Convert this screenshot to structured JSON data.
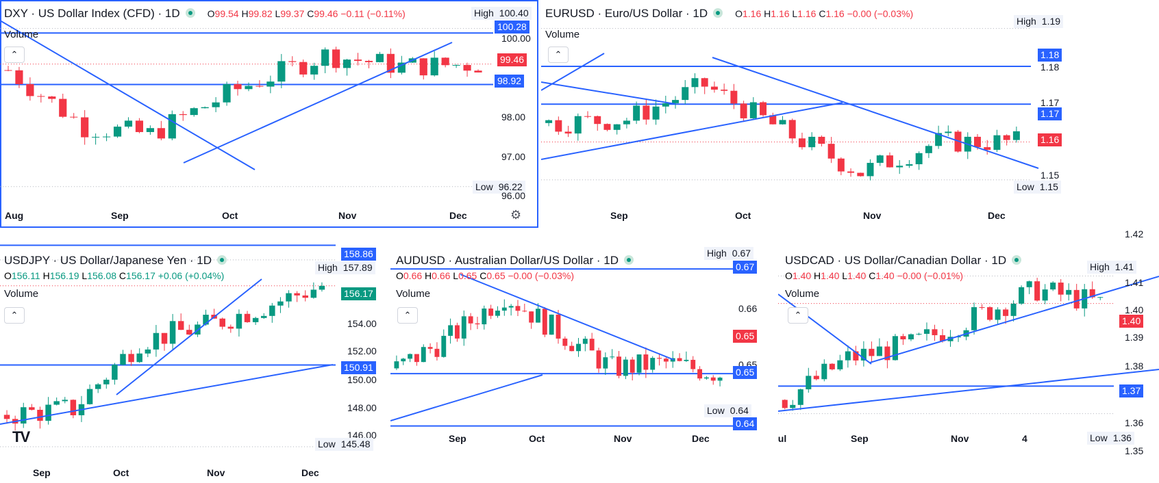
{
  "colors": {
    "up": "#089981",
    "down": "#f23645",
    "line": "#2962ff"
  },
  "panels": [
    {
      "id": "dxy",
      "header": {
        "title": "DXY · US Dollar Index (CFD) · 1D",
        "o": "99.54",
        "h": "99.82",
        "l": "99.37",
        "c": "99.46",
        "chg": "−0.11 (−0.11%)",
        "dir": "down"
      },
      "volume_label": "Volume",
      "high": {
        "label": "High",
        "value": "100.40"
      },
      "low": {
        "label": "Low",
        "value": "96.22"
      },
      "price_tags": [
        {
          "value": "100.28",
          "kind": "blue"
        },
        {
          "value": "99.46",
          "kind": "red"
        },
        {
          "value": "98.92",
          "kind": "blue"
        }
      ],
      "y_ticks": [
        "100.00",
        "98.00",
        "97.00",
        "96.00"
      ],
      "x_ticks": [
        "Aug",
        "Sep",
        "Oct",
        "Nov",
        "Dec"
      ],
      "settings_icon": "gear-icon"
    },
    {
      "id": "eurusd",
      "header": {
        "title": "EURUSD · Euro/US Dollar · 1D",
        "o": "1.16",
        "h": "1.16",
        "l": "1.16",
        "c": "1.16",
        "chg": "−0.00 (−0.03%)",
        "dir": "down"
      },
      "volume_label": "Volume",
      "high": {
        "label": "High",
        "value": "1.19"
      },
      "low": {
        "label": "Low",
        "value": "1.15"
      },
      "price_tags": [
        {
          "value": "1.18",
          "kind": "blue"
        },
        {
          "value": "1.17",
          "kind": "blue"
        },
        {
          "value": "1.16",
          "kind": "red"
        }
      ],
      "y_ticks": [
        "1.18",
        "1.17",
        "1.15"
      ],
      "x_ticks": [
        "Sep",
        "Oct",
        "Nov",
        "Dec"
      ]
    },
    {
      "id": "usdjpy",
      "header": {
        "title": "USDJPY · US Dollar/Japanese Yen · 1D",
        "o": "156.11",
        "h": "156.19",
        "l": "156.08",
        "c": "156.17",
        "chg": "+0.06 (+0.04%)",
        "dir": "up"
      },
      "volume_label": "Volume",
      "high": {
        "label": "High",
        "value": "157.89"
      },
      "low": {
        "label": "Low",
        "value": "145.48"
      },
      "price_tags": [
        {
          "value": "158.86",
          "kind": "blue"
        },
        {
          "value": "156.17",
          "kind": "green"
        },
        {
          "value": "150.91",
          "kind": "blue"
        }
      ],
      "y_ticks": [
        "154.00",
        "152.00",
        "150.00",
        "148.00",
        "146.00"
      ],
      "x_ticks": [
        "Sep",
        "Oct",
        "Nov",
        "Dec"
      ],
      "logo": "TV"
    },
    {
      "id": "audusd",
      "header": {
        "title": "AUDUSD · Australian Dollar/US Dollar · 1D",
        "o": "0.66",
        "h": "0.66",
        "l": "0.65",
        "c": "0.65",
        "chg": "−0.00 (−0.03%)",
        "dir": "down"
      },
      "volume_label": "Volume",
      "high": {
        "label": "High",
        "value": "0.67"
      },
      "low": {
        "label": "Low",
        "value": "0.64"
      },
      "price_tags": [
        {
          "value": "0.67",
          "kind": "blue"
        },
        {
          "value": "0.65",
          "kind": "red"
        },
        {
          "value": "0.65",
          "kind": "blue"
        },
        {
          "value": "0.64",
          "kind": "blue"
        }
      ],
      "y_ticks": [
        "0.66",
        "0.65"
      ],
      "x_ticks": [
        "Sep",
        "Oct",
        "Nov",
        "Dec"
      ]
    },
    {
      "id": "usdcad",
      "header": {
        "title": "USDCAD · US Dollar/Canadian Dollar · 1D",
        "o": "1.40",
        "h": "1.40",
        "l": "1.40",
        "c": "1.40",
        "chg": "−0.00 (−0.01%)",
        "dir": "down"
      },
      "volume_label": "Volume",
      "high": {
        "label": "High",
        "value": "1.41"
      },
      "low": {
        "label": "Low",
        "value": "1.36"
      },
      "price_tags": [
        {
          "value": "1.40",
          "kind": "red"
        },
        {
          "value": "1.37",
          "kind": "blue"
        }
      ],
      "y_ticks": [
        "1.42",
        "1.41",
        "1.40",
        "1.39",
        "1.38",
        "1.36",
        "1.35"
      ],
      "x_ticks": [
        "Jul",
        "Sep",
        "Nov",
        "4"
      ]
    }
  ],
  "chart_data": [
    {
      "type": "candlestick",
      "symbol": "DXY",
      "timeframe": "1D",
      "ylim": [
        95.8,
        100.9
      ],
      "last": {
        "open": 99.54,
        "high": 99.82,
        "low": 99.37,
        "close": 99.46
      },
      "close_path": [
        {
          "x": "Aug",
          "y": 99.3
        },
        {
          "x": "Sep",
          "y": 97.8
        },
        {
          "x": "Oct",
          "y": 97.6
        },
        {
          "x": "Oct mid",
          "y": 98.8
        },
        {
          "x": "Nov",
          "y": 99.7
        },
        {
          "x": "Nov mid",
          "y": 99.4
        },
        {
          "x": "Nov end",
          "y": 99.46
        }
      ],
      "levels": [
        100.28,
        98.92
      ],
      "period_high": 100.4,
      "period_low": 96.22
    },
    {
      "type": "candlestick",
      "symbol": "EURUSD",
      "timeframe": "1D",
      "ylim": [
        1.144,
        1.195
      ],
      "last": {
        "open": 1.16,
        "high": 1.16,
        "low": 1.16,
        "close": 1.16
      },
      "close_path": [
        {
          "x": "Aug",
          "y": 1.165
        },
        {
          "x": "Sep",
          "y": 1.166
        },
        {
          "x": "Sep mid",
          "y": 1.175
        },
        {
          "x": "Oct",
          "y": 1.163
        },
        {
          "x": "Nov",
          "y": 1.152
        },
        {
          "x": "Nov mid",
          "y": 1.16
        },
        {
          "x": "Dec",
          "y": 1.16
        }
      ],
      "levels": [
        1.18,
        1.17
      ],
      "period_high": 1.19,
      "period_low": 1.15
    },
    {
      "type": "candlestick",
      "symbol": "USDJPY",
      "timeframe": "1D",
      "ylim": [
        145.3,
        159.2
      ],
      "last": {
        "open": 156.11,
        "high": 156.19,
        "low": 156.08,
        "close": 156.17
      },
      "close_path": [
        {
          "x": "Sep",
          "y": 147.6
        },
        {
          "x": "Oct",
          "y": 148.0
        },
        {
          "x": "Oct mid",
          "y": 152.5
        },
        {
          "x": "Nov",
          "y": 153.5
        },
        {
          "x": "Nov mid",
          "y": 155.0
        },
        {
          "x": "Nov end",
          "y": 156.17
        }
      ],
      "levels": [
        158.86,
        150.91
      ],
      "period_high": 157.89,
      "period_low": 145.48
    },
    {
      "type": "candlestick",
      "symbol": "AUDUSD",
      "timeframe": "1D",
      "ylim": [
        0.6355,
        0.6755
      ],
      "last": {
        "open": 0.66,
        "high": 0.66,
        "low": 0.65,
        "close": 0.65
      },
      "close_path": [
        {
          "x": "Aug",
          "y": 0.651
        },
        {
          "x": "Sep",
          "y": 0.657
        },
        {
          "x": "Sep mid",
          "y": 0.665
        },
        {
          "x": "Oct",
          "y": 0.658
        },
        {
          "x": "Oct mid",
          "y": 0.651
        },
        {
          "x": "Nov",
          "y": 0.652
        },
        {
          "x": "Nov end",
          "y": 0.65
        }
      ],
      "levels": [
        0.67,
        0.65,
        0.64
      ],
      "period_high": 0.67,
      "period_low": 0.64
    },
    {
      "type": "candlestick",
      "symbol": "USDCAD",
      "timeframe": "1D",
      "ylim": [
        1.347,
        1.423
      ],
      "last": {
        "open": 1.4,
        "high": 1.4,
        "low": 1.4,
        "close": 1.4
      },
      "close_path": [
        {
          "x": "Jul",
          "y": 1.365
        },
        {
          "x": "Aug",
          "y": 1.38
        },
        {
          "x": "Sep",
          "y": 1.385
        },
        {
          "x": "Oct",
          "y": 1.395
        },
        {
          "x": "Nov",
          "y": 1.405
        },
        {
          "x": "Nov end",
          "y": 1.4
        }
      ],
      "levels": [
        1.37
      ],
      "period_high": 1.41,
      "period_low": 1.36
    }
  ]
}
